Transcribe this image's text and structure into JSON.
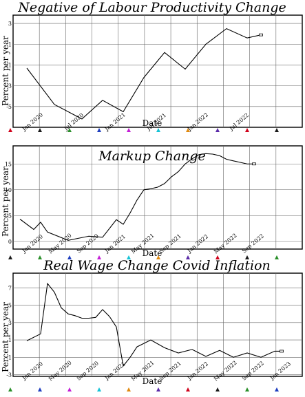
{
  "chart_data": [
    {
      "type": "line",
      "title": "Negative of Labour Productivity Change",
      "xlabel": "Date",
      "ylabel": "Percent per year",
      "ylim": [
        -7,
        3.8
      ],
      "yticks": [
        3,
        1,
        -1,
        -3,
        -5
      ],
      "xticks": [
        "Jan 2020",
        "Jul 2020",
        "Jan 2021",
        "Jul 2021",
        "Jan 2022",
        "Jul 2022"
      ],
      "xlim": [
        "2019-10",
        "2023-04"
      ],
      "series": [
        {
          "x": [
            "2019-12",
            "2020-04",
            "2020-08",
            "2020-11",
            "2021-02",
            "2021-05",
            "2021-08",
            "2021-11",
            "2022-02",
            "2022-05",
            "2022-08",
            "2022-10"
          ],
          "values": [
            -1.3,
            -4.8,
            -6.2,
            -4.4,
            -5.5,
            -2.2,
            0.2,
            -1.4,
            1.0,
            2.5,
            1.6,
            1.9
          ]
        }
      ],
      "grid": true,
      "line_color": "#000000"
    },
    {
      "type": "line",
      "title": "Markup Change",
      "xlabel": "Date",
      "ylabel": "Percent per year",
      "ylim": [
        -1.5,
        18.5
      ],
      "yticks": [
        0,
        5,
        10,
        15
      ],
      "xticks": [
        "Jan 2020",
        "May 2020",
        "Sep 2020",
        "Jan 2021",
        "May 2021",
        "Sep 2021",
        "Jan 2022",
        "May 2022",
        "Sep 2022"
      ],
      "xlim": [
        "2019-10",
        "2023-04"
      ],
      "series": [
        {
          "x": [
            "2019-11",
            "2020-01",
            "2020-02",
            "2020-03",
            "2020-06",
            "2020-09",
            "2020-11",
            "2021-01",
            "2021-02",
            "2021-03",
            "2021-04",
            "2021-05",
            "2021-06",
            "2021-07",
            "2021-08",
            "2021-09",
            "2021-10",
            "2021-11",
            "2021-12",
            "2022-01",
            "2022-02",
            "2022-03",
            "2022-04",
            "2022-05",
            "2022-06",
            "2022-07",
            "2022-08",
            "2022-09"
          ],
          "values": [
            4.3,
            2.3,
            3.7,
            1.8,
            0.2,
            1.0,
            0.8,
            4.2,
            3.3,
            5.5,
            8.0,
            10.0,
            10.2,
            10.5,
            11.2,
            12.5,
            13.5,
            15.0,
            16.0,
            16.8,
            17.0,
            16.9,
            16.6,
            15.9,
            15.6,
            15.3,
            15.0,
            15.0
          ]
        }
      ],
      "grid": true,
      "line_color": "#000000"
    },
    {
      "type": "line",
      "title": "Real Wage Change Covid Inflation",
      "xlabel": "Date",
      "ylabel": "Percent per year",
      "ylim": [
        -3.2,
        8.7
      ],
      "yticks": [
        7,
        5,
        3,
        1,
        -1,
        -3
      ],
      "xticks": [
        "Jan 2020",
        "May 2020",
        "Sep 2020",
        "Jan 2021",
        "May 2021",
        "Sep 2021",
        "Jan 2022",
        "May 2022",
        "Sep 2022",
        "Jan 2023"
      ],
      "xlim": [
        "2019-10",
        "2023-04"
      ],
      "series": [
        {
          "x": [
            "2019-12",
            "2020-02",
            "2020-03",
            "2020-04",
            "2020-05",
            "2020-06",
            "2020-07",
            "2020-08",
            "2020-09",
            "2020-10",
            "2020-11",
            "2020-12",
            "2021-01",
            "2021-02",
            "2021-03",
            "2021-04",
            "2021-05",
            "2021-06",
            "2021-08",
            "2021-10",
            "2021-12",
            "2022-02",
            "2022-04",
            "2022-06",
            "2022-08",
            "2022-10",
            "2022-12",
            "2023-01"
          ],
          "values": [
            0.9,
            1.7,
            7.5,
            6.5,
            4.7,
            4.0,
            3.8,
            3.5,
            3.5,
            3.6,
            4.5,
            3.7,
            2.5,
            -2.0,
            -1.0,
            0.2,
            0.6,
            1.0,
            0.1,
            -0.5,
            -0.1,
            -0.9,
            -0.2,
            -1.0,
            -0.5,
            -1.0,
            -0.3,
            -0.3
          ]
        }
      ],
      "grid": true,
      "line_color": "#000000"
    }
  ]
}
